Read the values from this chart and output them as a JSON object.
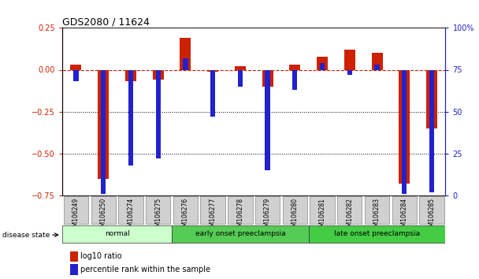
{
  "title": "GDS2080 / 11624",
  "samples": [
    "GSM106249",
    "GSM106250",
    "GSM106274",
    "GSM106275",
    "GSM106276",
    "GSM106277",
    "GSM106278",
    "GSM106279",
    "GSM106280",
    "GSM106281",
    "GSM106282",
    "GSM106283",
    "GSM106284",
    "GSM106285"
  ],
  "log10_ratio": [
    0.03,
    -0.65,
    -0.07,
    -0.06,
    0.19,
    -0.01,
    0.02,
    -0.1,
    0.03,
    0.08,
    0.12,
    0.1,
    -0.68,
    -0.35
  ],
  "percentile_rank": [
    68,
    1,
    18,
    22,
    82,
    47,
    65,
    15,
    63,
    79,
    72,
    78,
    1,
    2
  ],
  "red_color": "#cc2200",
  "blue_color": "#2222cc",
  "ylim_left": [
    -0.75,
    0.25
  ],
  "ylim_right": [
    0,
    100
  ],
  "yticks_left": [
    -0.75,
    -0.5,
    -0.25,
    0.0,
    0.25
  ],
  "yticks_right": [
    0,
    25,
    50,
    75,
    100
  ],
  "groups": [
    {
      "label": "normal",
      "start": 0,
      "end": 3,
      "color": "#ccffcc"
    },
    {
      "label": "early onset preeclampsia",
      "start": 4,
      "end": 8,
      "color": "#55cc55"
    },
    {
      "label": "late onset preeclampsia",
      "start": 9,
      "end": 13,
      "color": "#44cc44"
    }
  ],
  "disease_state_label": "disease state",
  "legend_red": "log10 ratio",
  "legend_blue": "percentile rank within the sample",
  "red_bar_width": 0.4,
  "blue_bar_width": 0.18,
  "plot_bg": "#ffffff"
}
